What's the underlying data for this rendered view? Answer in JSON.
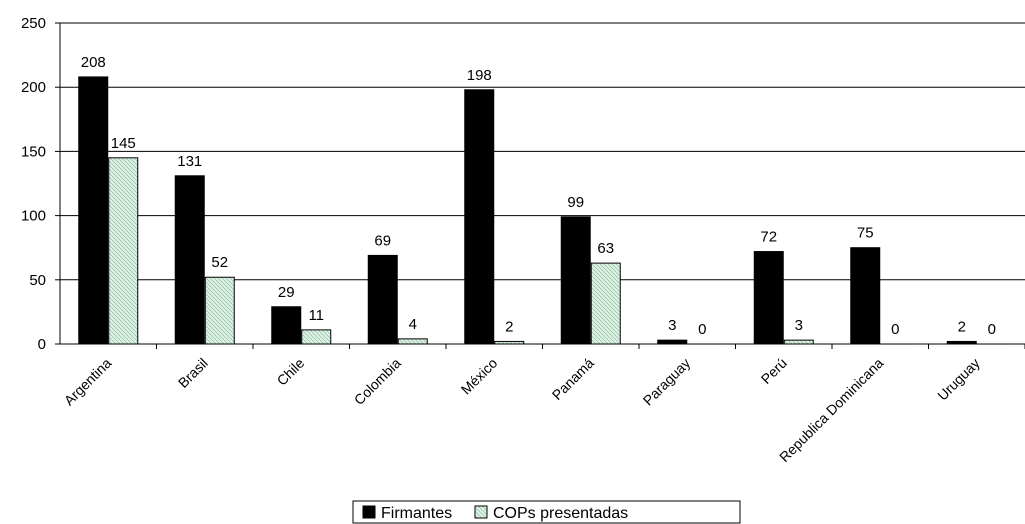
{
  "chart_data": {
    "type": "bar",
    "categories": [
      "Argentina",
      "Brasil",
      "Chile",
      "Colombia",
      "México",
      "Panamá",
      "Paraguay",
      "Perú",
      "Republica Dominicana",
      "Uruguay"
    ],
    "series": [
      {
        "name": "Firmantes",
        "values": [
          208,
          131,
          29,
          69,
          198,
          99,
          3,
          72,
          75,
          2
        ],
        "color": "#000000"
      },
      {
        "name": "COPs presentadas",
        "values": [
          145,
          52,
          11,
          4,
          2,
          63,
          0,
          3,
          0,
          0
        ],
        "color": "#c8e6d4"
      }
    ],
    "ylim": [
      0,
      250
    ],
    "yticks": [
      0,
      50,
      100,
      150,
      200,
      250
    ],
    "grid": true,
    "legend_position": "bottom"
  }
}
